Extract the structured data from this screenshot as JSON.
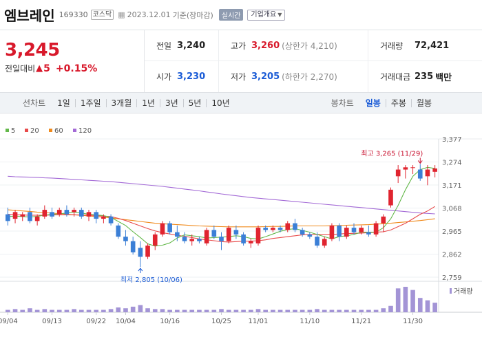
{
  "header": {
    "name": "엠브레인",
    "code": "169330",
    "market": "코스닥",
    "date": "2023.12.01",
    "date_suffix": "기준(장마감)",
    "realtime_label": "실시간",
    "overview_label": "기업개요"
  },
  "price": {
    "current": "3,245",
    "change_label": "전일대비",
    "change_value": "5",
    "change_pct": "+0.15%"
  },
  "stats": {
    "prev_close": {
      "label": "전일",
      "value": "3,240"
    },
    "open": {
      "label": "시가",
      "value": "3,230"
    },
    "high": {
      "label": "고가",
      "value": "3,260",
      "sub": "(상한가 4,210)"
    },
    "low": {
      "label": "저가",
      "value": "3,205",
      "sub": "(하한가 2,270)"
    },
    "volume": {
      "label": "거래량",
      "value": "72,421"
    },
    "amount": {
      "label": "거래대금",
      "value": "235",
      "unit": "백만"
    }
  },
  "tabs": {
    "line_label": "선차트",
    "line_tabs": [
      "1일",
      "1주일",
      "3개월",
      "1년",
      "3년",
      "5년",
      "10년"
    ],
    "candle_label": "봉차트",
    "candle_tabs": [
      "일봉",
      "주봉",
      "월봉"
    ],
    "active_candle": "일봉"
  },
  "colors": {
    "up": "#e0242f",
    "down": "#3b7fd6",
    "ma5": "#63b84a",
    "ma20": "#e84a4a",
    "ma60": "#f08a1c",
    "ma120": "#a36ad6",
    "volume": "#a394d6"
  },
  "chart_data": {
    "type": "candlestick",
    "legend": [
      {
        "name": "5",
        "color": "#63b84a"
      },
      {
        "name": "20",
        "color": "#e84a4a"
      },
      {
        "name": "60",
        "color": "#f08a1c"
      },
      {
        "name": "120",
        "color": "#a36ad6"
      }
    ],
    "ylim": [
      2759,
      3377
    ],
    "yticks": [
      "3,377",
      "3,274",
      "3,171",
      "3,068",
      "2,965",
      "2,862",
      "2,759"
    ],
    "xticks": [
      {
        "label": "09/04",
        "i": 0
      },
      {
        "label": "09/13",
        "i": 6
      },
      {
        "label": "09/22",
        "i": 12
      },
      {
        "label": "10/04",
        "i": 16
      },
      {
        "label": "10/16",
        "i": 22
      },
      {
        "label": "10/25",
        "i": 29
      },
      {
        "label": "11/01",
        "i": 34
      },
      {
        "label": "11/10",
        "i": 41
      },
      {
        "label": "11/21",
        "i": 48
      },
      {
        "label": "11/30",
        "i": 55
      }
    ],
    "high_annotation": "최고 3,265 (11/29)",
    "low_annotation": "최저 2,805 (10/06)",
    "volume_label": "거래량",
    "candles": [
      {
        "o": 3040,
        "h": 3070,
        "l": 2990,
        "c": 3010
      },
      {
        "o": 3020,
        "h": 3060,
        "l": 3000,
        "c": 3050
      },
      {
        "o": 3030,
        "h": 3050,
        "l": 3010,
        "c": 3040
      },
      {
        "o": 3050,
        "h": 3070,
        "l": 3000,
        "c": 3010
      },
      {
        "o": 3010,
        "h": 3040,
        "l": 2990,
        "c": 3030
      },
      {
        "o": 3030,
        "h": 3080,
        "l": 3020,
        "c": 3060
      },
      {
        "o": 3050,
        "h": 3070,
        "l": 3020,
        "c": 3030
      },
      {
        "o": 3040,
        "h": 3070,
        "l": 3030,
        "c": 3060
      },
      {
        "o": 3060,
        "h": 3080,
        "l": 3030,
        "c": 3040
      },
      {
        "o": 3050,
        "h": 3070,
        "l": 3030,
        "c": 3060
      },
      {
        "o": 3060,
        "h": 3070,
        "l": 3020,
        "c": 3030
      },
      {
        "o": 3030,
        "h": 3060,
        "l": 3010,
        "c": 3050
      },
      {
        "o": 3050,
        "h": 3060,
        "l": 3000,
        "c": 3020
      },
      {
        "o": 3020,
        "h": 3040,
        "l": 3000,
        "c": 3030
      },
      {
        "o": 3030,
        "h": 3040,
        "l": 2990,
        "c": 3000
      },
      {
        "o": 2990,
        "h": 3000,
        "l": 2930,
        "c": 2940
      },
      {
        "o": 2940,
        "h": 2970,
        "l": 2900,
        "c": 2920
      },
      {
        "o": 2920,
        "h": 2940,
        "l": 2860,
        "c": 2870
      },
      {
        "o": 2890,
        "h": 2920,
        "l": 2805,
        "c": 2850
      },
      {
        "o": 2850,
        "h": 2910,
        "l": 2840,
        "c": 2900
      },
      {
        "o": 2900,
        "h": 2960,
        "l": 2880,
        "c": 2950
      },
      {
        "o": 2950,
        "h": 3010,
        "l": 2940,
        "c": 3000
      },
      {
        "o": 3000,
        "h": 3010,
        "l": 2950,
        "c": 2960
      },
      {
        "o": 2960,
        "h": 2990,
        "l": 2920,
        "c": 2940
      },
      {
        "o": 2940,
        "h": 2960,
        "l": 2910,
        "c": 2920
      },
      {
        "o": 2920,
        "h": 2950,
        "l": 2900,
        "c": 2930
      },
      {
        "o": 2930,
        "h": 2940,
        "l": 2910,
        "c": 2920
      },
      {
        "o": 2910,
        "h": 2980,
        "l": 2900,
        "c": 2970
      },
      {
        "o": 2970,
        "h": 2990,
        "l": 2930,
        "c": 2940
      },
      {
        "o": 2940,
        "h": 2960,
        "l": 2880,
        "c": 2920
      },
      {
        "o": 2920,
        "h": 2990,
        "l": 2910,
        "c": 2980
      },
      {
        "o": 2970,
        "h": 2990,
        "l": 2930,
        "c": 2950
      },
      {
        "o": 2950,
        "h": 2960,
        "l": 2900,
        "c": 2910
      },
      {
        "o": 2910,
        "h": 2930,
        "l": 2890,
        "c": 2920
      },
      {
        "o": 2910,
        "h": 2990,
        "l": 2900,
        "c": 2980
      },
      {
        "o": 2980,
        "h": 2990,
        "l": 2960,
        "c": 2970
      },
      {
        "o": 2970,
        "h": 2990,
        "l": 2960,
        "c": 2980
      },
      {
        "o": 2980,
        "h": 2990,
        "l": 2960,
        "c": 2970
      },
      {
        "o": 2970,
        "h": 3010,
        "l": 2960,
        "c": 3000
      },
      {
        "o": 3000,
        "h": 3020,
        "l": 2960,
        "c": 2970
      },
      {
        "o": 2970,
        "h": 2980,
        "l": 2940,
        "c": 2950
      },
      {
        "o": 2950,
        "h": 2960,
        "l": 2930,
        "c": 2940
      },
      {
        "o": 2940,
        "h": 2960,
        "l": 2890,
        "c": 2900
      },
      {
        "o": 2900,
        "h": 2940,
        "l": 2890,
        "c": 2930
      },
      {
        "o": 2930,
        "h": 3000,
        "l": 2920,
        "c": 2990
      },
      {
        "o": 2990,
        "h": 3000,
        "l": 2920,
        "c": 2940
      },
      {
        "o": 2940,
        "h": 2990,
        "l": 2930,
        "c": 2980
      },
      {
        "o": 2980,
        "h": 3000,
        "l": 2950,
        "c": 2960
      },
      {
        "o": 2960,
        "h": 2990,
        "l": 2950,
        "c": 2980
      },
      {
        "o": 2960,
        "h": 2990,
        "l": 2940,
        "c": 2950
      },
      {
        "o": 2950,
        "h": 3010,
        "l": 2940,
        "c": 3000
      },
      {
        "o": 3000,
        "h": 3040,
        "l": 2960,
        "c": 3030
      },
      {
        "o": 3080,
        "h": 3160,
        "l": 3070,
        "c": 3150
      },
      {
        "o": 3210,
        "h": 3260,
        "l": 3180,
        "c": 3240
      },
      {
        "o": 3240,
        "h": 3260,
        "l": 3200,
        "c": 3250
      },
      {
        "o": 3250,
        "h": 3260,
        "l": 3220,
        "c": 3250
      },
      {
        "o": 3240,
        "h": 3265,
        "l": 3190,
        "c": 3200
      },
      {
        "o": 3210,
        "h": 3260,
        "l": 3170,
        "c": 3240
      },
      {
        "o": 3230,
        "h": 3260,
        "l": 3205,
        "c": 3245
      }
    ],
    "ma5": [
      3030,
      3032,
      3030,
      3028,
      3031,
      3036,
      3040,
      3042,
      3046,
      3050,
      3046,
      3040,
      3038,
      3034,
      3026,
      3008,
      2990,
      2962,
      2936,
      2908,
      2898,
      2902,
      2912,
      2934,
      2948,
      2944,
      2940,
      2934,
      2936,
      2938,
      2940,
      2944,
      2940,
      2932,
      2930,
      2940,
      2952,
      2964,
      2972,
      2976,
      2968,
      2960,
      2950,
      2940,
      2930,
      2940,
      2944,
      2950,
      2960,
      2960,
      2960,
      2980,
      3020,
      3080,
      3150,
      3210,
      3240,
      3250,
      3245
    ],
    "ma20": [
      3040,
      3038,
      3037,
      3036,
      3036,
      3036,
      3037,
      3038,
      3038,
      3038,
      3037,
      3036,
      3034,
      3032,
      3030,
      3022,
      3012,
      3000,
      2988,
      2976,
      2966,
      2958,
      2952,
      2946,
      2942,
      2936,
      2930,
      2926,
      2922,
      2918,
      2916,
      2918,
      2920,
      2920,
      2922,
      2926,
      2932,
      2936,
      2940,
      2944,
      2948,
      2950,
      2950,
      2950,
      2950,
      2952,
      2954,
      2955,
      2956,
      2958,
      2960,
      2962,
      2970,
      2985,
      3000,
      3020,
      3040,
      3055,
      3075
    ],
    "ma60": [
      3060,
      3058,
      3055,
      3053,
      3050,
      3048,
      3045,
      3043,
      3040,
      3038,
      3035,
      3033,
      3030,
      3027,
      3024,
      3020,
      3016,
      3012,
      3008,
      3004,
      3000,
      2998,
      2996,
      2994,
      2992,
      2990,
      2988,
      2987,
      2986,
      2985,
      2984,
      2984,
      2984,
      2984,
      2984,
      2985,
      2986,
      2986,
      2987,
      2988,
      2988,
      2988,
      2988,
      2988,
      2989,
      2990,
      2991,
      2992,
      2993,
      2994,
      2996,
      2998,
      3000,
      3003,
      3006,
      3009,
      3012,
      3016,
      3020
    ],
    "ma120": [
      3210,
      3208,
      3207,
      3206,
      3205,
      3203,
      3202,
      3200,
      3198,
      3196,
      3194,
      3192,
      3190,
      3188,
      3186,
      3183,
      3180,
      3177,
      3174,
      3171,
      3168,
      3165,
      3161,
      3157,
      3153,
      3149,
      3145,
      3140,
      3136,
      3131,
      3127,
      3123,
      3119,
      3115,
      3112,
      3109,
      3106,
      3103,
      3100,
      3097,
      3094,
      3091,
      3088,
      3085,
      3082,
      3079,
      3076,
      3073,
      3070,
      3067,
      3064,
      3061,
      3058,
      3055,
      3052,
      3049,
      3046,
      3044,
      3042
    ],
    "volume": [
      3,
      4,
      3,
      5,
      3,
      4,
      3,
      3,
      3,
      4,
      3,
      3,
      3,
      3,
      4,
      6,
      5,
      7,
      9,
      5,
      4,
      4,
      3,
      3,
      3,
      3,
      3,
      3,
      3,
      4,
      3,
      3,
      3,
      3,
      4,
      3,
      3,
      3,
      3,
      3,
      3,
      3,
      4,
      3,
      3,
      3,
      3,
      3,
      3,
      3,
      3,
      5,
      8,
      30,
      32,
      28,
      18,
      15,
      12
    ]
  }
}
